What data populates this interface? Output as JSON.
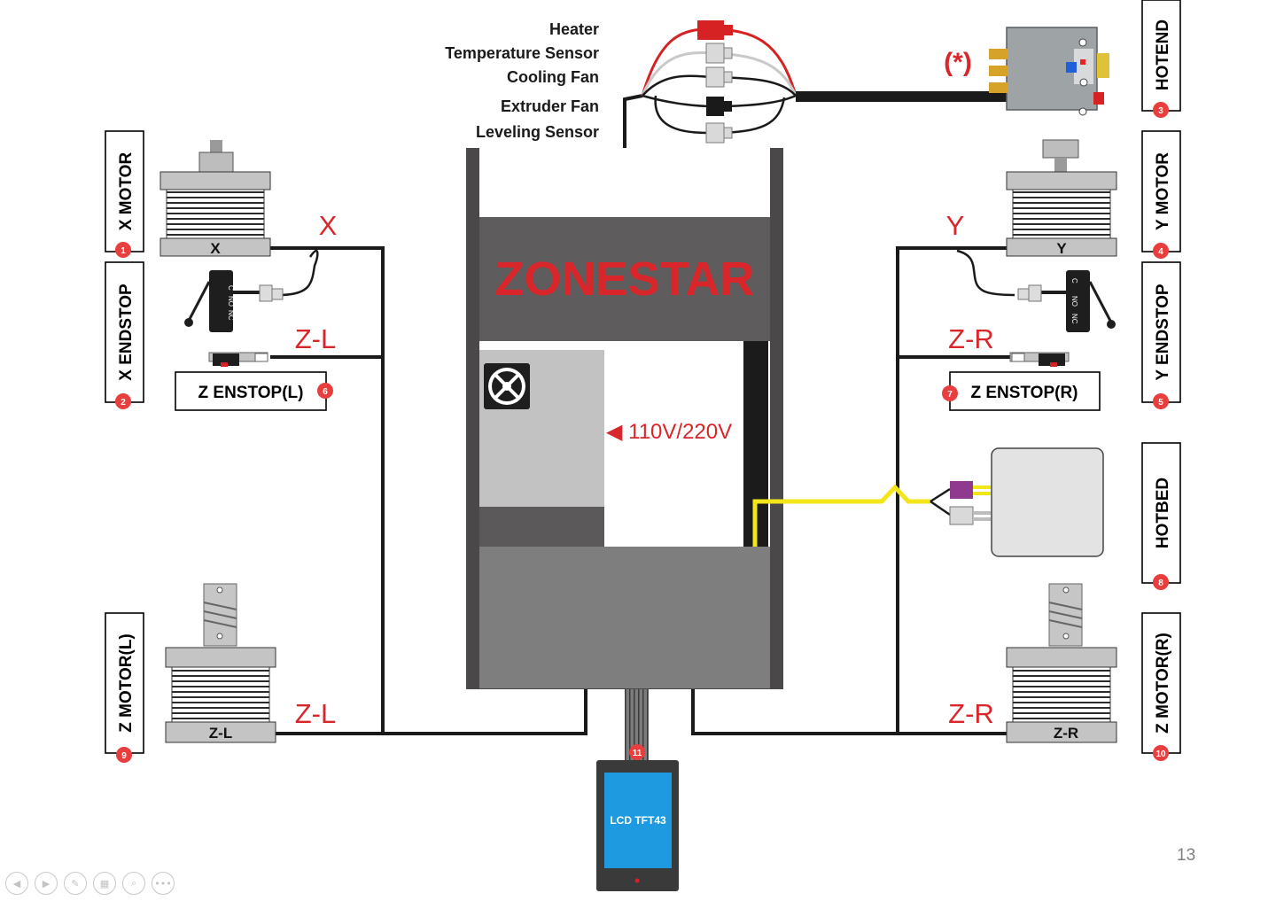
{
  "components": {
    "x_motor": {
      "label": "X MOTOR",
      "badge": "1",
      "letter": "X"
    },
    "x_endstop": {
      "label": "X ENDSTOP",
      "badge": "2"
    },
    "hotend": {
      "label": "HOTEND",
      "badge": "3",
      "note": "(*)"
    },
    "y_motor": {
      "label": "Y MOTOR",
      "badge": "4",
      "letter": "Y"
    },
    "y_endstop": {
      "label": "Y ENDSTOP",
      "badge": "5"
    },
    "z_endstop_l": {
      "label": "Z ENSTOP(L)",
      "badge": "6"
    },
    "z_endstop_r": {
      "label": "Z ENSTOP(R)",
      "badge": "7"
    },
    "hotbed": {
      "label": "HOTBED",
      "badge": "8"
    },
    "z_motor_l": {
      "label": "Z MOTOR(L)",
      "badge": "9",
      "letter": "Z-L"
    },
    "z_motor_r": {
      "label": "Z MOTOR(R)",
      "badge": "10",
      "letter": "Z-R"
    },
    "lcd": {
      "label": "LCD TFT43",
      "badge": "11"
    }
  },
  "wire_labels": {
    "x": "X",
    "y": "Y",
    "zl_endstop": "Z-L",
    "zr_endstop": "Z-R",
    "zl_motor": "Z-L",
    "zr_motor": "Z-R"
  },
  "hotend_cables": [
    "Heater",
    "Temperature Sensor",
    "Cooling Fan",
    "Extruder Fan",
    "Leveling Sensor"
  ],
  "switch_pins": {
    "c": "C",
    "no": "NO",
    "nc": "NC"
  },
  "controller": {
    "brand": "ZONESTAR",
    "power_label": "◀ 110V/220V"
  },
  "colors": {
    "accent_red": "#d8262a",
    "badge_red": "#e83e3e",
    "cable_yellow": "#f2e51a",
    "lcd_blue": "#1e9be0"
  },
  "slide": {
    "page_number": "13"
  },
  "nav_icons": [
    "previous-icon",
    "next-icon",
    "pen-icon",
    "slides-icon",
    "zoom-icon",
    "more-icon"
  ]
}
